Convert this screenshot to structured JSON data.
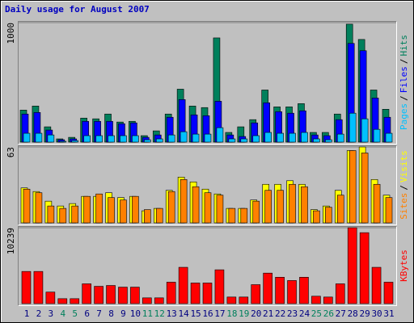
{
  "chart_data": {
    "type": "bar",
    "title": "Daily usage for August 2007",
    "categories": [
      "1",
      "2",
      "3",
      "4",
      "5",
      "6",
      "7",
      "8",
      "9",
      "10",
      "11",
      "12",
      "13",
      "14",
      "15",
      "16",
      "17",
      "18",
      "19",
      "20",
      "21",
      "22",
      "23",
      "24",
      "25",
      "26",
      "27",
      "28",
      "29",
      "30",
      "31"
    ],
    "category_colors": [
      "#000080",
      "#000080",
      "#000080",
      "#00805c",
      "#00805c",
      "#000080",
      "#000080",
      "#000080",
      "#000080",
      "#000080",
      "#00805c",
      "#00805c",
      "#000080",
      "#000080",
      "#000080",
      "#000080",
      "#000080",
      "#00805c",
      "#00805c",
      "#000080",
      "#000080",
      "#000080",
      "#000080",
      "#000080",
      "#00805c",
      "#00805c",
      "#000080",
      "#000080",
      "#000080",
      "#000080",
      "#000080"
    ],
    "legend_separator": "/",
    "panels": [
      {
        "ylim": [
          0,
          1000
        ],
        "yticks": [
          1000
        ],
        "series": [
          {
            "name": "Hits",
            "color": "#00805c",
            "values": [
              268,
              302,
              128,
              27,
              40,
              201,
              195,
              235,
              168,
              174,
              54,
              94,
              235,
              443,
              302,
              289,
              872,
              81,
              128,
              188,
              436,
              295,
              295,
              322,
              81,
              81,
              235,
              987,
              859,
              436,
              275
            ]
          },
          {
            "name": "Files",
            "color": "#0000ff",
            "values": [
              235,
              248,
              101,
              20,
              27,
              174,
              174,
              174,
              154,
              161,
              40,
              60,
              208,
              356,
              228,
              221,
              342,
              60,
              47,
              161,
              329,
              255,
              242,
              262,
              60,
              54,
              188,
              826,
              765,
              369,
              208
            ]
          },
          {
            "name": "Pages",
            "color": "#00c0ff",
            "values": [
              74,
              74,
              60,
              7,
              13,
              54,
              54,
              54,
              54,
              54,
              20,
              27,
              60,
              87,
              67,
              67,
              121,
              27,
              27,
              54,
              81,
              74,
              74,
              81,
              27,
              20,
              67,
              242,
              195,
              107,
              74
            ]
          }
        ]
      },
      {
        "ylim": [
          0,
          63
        ],
        "yticks": [
          63
        ],
        "series": [
          {
            "name": "Visits",
            "color": "#ffff00",
            "values": [
              29,
              26,
              18,
              14,
              16,
              22,
              22,
              25,
              21,
              22,
              10,
              12,
              27,
              38,
              34,
              28,
              24,
              12,
              12,
              19,
              32,
              32,
              35,
              32,
              11,
              14,
              27,
              60,
              63,
              36,
              23
            ]
          },
          {
            "name": "Sites",
            "color": "#ff8000",
            "values": [
              28,
              25,
              14,
              12,
              14,
              22,
              24,
              21,
              19,
              22,
              11,
              12,
              26,
              36,
              30,
              25,
              23,
              12,
              12,
              18,
              27,
              27,
              32,
              30,
              10,
              13,
              23,
              60,
              58,
              32,
              21
            ]
          }
        ]
      },
      {
        "ylim": [
          0,
          10239
        ],
        "yticks": [
          10239
        ],
        "series": [
          {
            "name": "KBytes",
            "color": "#ff0000",
            "values": [
              4340,
              4340,
              1558,
              668,
              668,
              2671,
              2337,
              2448,
              2226,
              2226,
              779,
              779,
              2894,
              4897,
              2782,
              2782,
              4563,
              890,
              890,
              2560,
              4118,
              3561,
              3116,
              3561,
              1002,
              890,
              2671,
              10239,
              9571,
              4897,
              2894
            ]
          }
        ]
      }
    ]
  }
}
